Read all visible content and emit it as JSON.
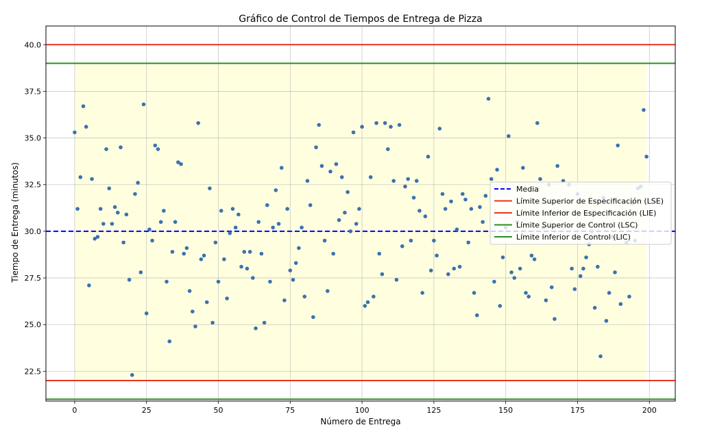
{
  "chart_data": {
    "type": "scatter",
    "title": "Gráfico de Control de Tiempos de Entrega de Pizza",
    "xlabel": "Número de Entrega",
    "ylabel": "Tiempo de Entrega (minutos)",
    "xlim": [
      -10,
      209
    ],
    "ylim": [
      20.9,
      41.0
    ],
    "xticks": [
      0,
      25,
      50,
      75,
      100,
      125,
      150,
      175,
      200
    ],
    "xtick_labels": [
      "0",
      "25",
      "50",
      "75",
      "100",
      "125",
      "150",
      "175",
      "200"
    ],
    "yticks": [
      22.5,
      25.0,
      27.5,
      30.0,
      32.5,
      35.0,
      37.5,
      40.0
    ],
    "ytick_labels": [
      "22.5",
      "25.0",
      "27.5",
      "30.0",
      "32.5",
      "35.0",
      "37.5",
      "40.0"
    ],
    "grid": true,
    "legend_position": "right",
    "shaded_region": {
      "x": [
        0,
        199
      ],
      "y": [
        22.0,
        39.0
      ],
      "color": "#ffffe0"
    },
    "lines": [
      {
        "name": "Media",
        "y": 30.0,
        "color": "#0000ff",
        "style": "dashed"
      },
      {
        "name": "Límite Superior de Especificación (LSE)",
        "y": 40.0,
        "color": "#e8331e",
        "style": "solid"
      },
      {
        "name": "Límite Inferior de Especificación (LIE)",
        "y": 22.0,
        "color": "#e8331e",
        "style": "solid"
      },
      {
        "name": "Límite Superior de Control (LSC)",
        "y": 39.0,
        "color": "#2e8b22",
        "style": "solid"
      },
      {
        "name": "Límite Inferior de Control (LIC)",
        "y": 21.0,
        "color": "#2e8b22",
        "style": "solid"
      }
    ],
    "series": [
      {
        "color": "#3a72b0",
        "x": [
          0,
          1,
          2,
          3,
          4,
          5,
          6,
          7,
          8,
          9,
          10,
          11,
          12,
          13,
          14,
          15,
          16,
          17,
          18,
          19,
          20,
          21,
          22,
          23,
          24,
          25,
          26,
          27,
          28,
          29,
          30,
          31,
          32,
          33,
          34,
          35,
          36,
          37,
          38,
          39,
          40,
          41,
          42,
          43,
          44,
          45,
          46,
          47,
          48,
          49,
          50,
          51,
          52,
          53,
          54,
          55,
          56,
          57,
          58,
          59,
          60,
          61,
          62,
          63,
          64,
          65,
          66,
          67,
          68,
          69,
          70,
          71,
          72,
          73,
          74,
          75,
          76,
          77,
          78,
          79,
          80,
          81,
          82,
          83,
          84,
          85,
          86,
          87,
          88,
          89,
          90,
          91,
          92,
          93,
          94,
          95,
          96,
          97,
          98,
          99,
          100,
          101,
          102,
          103,
          104,
          105,
          106,
          107,
          108,
          109,
          110,
          111,
          112,
          113,
          114,
          115,
          116,
          117,
          118,
          119,
          120,
          121,
          122,
          123,
          124,
          125,
          126,
          127,
          128,
          129,
          130,
          131,
          132,
          133,
          134,
          135,
          136,
          137,
          138,
          139,
          140,
          141,
          142,
          143,
          144,
          145,
          146,
          147,
          148,
          149,
          150,
          151,
          152,
          153,
          154,
          155,
          156,
          157,
          158,
          159,
          160,
          161,
          162,
          163,
          164,
          165,
          166,
          167,
          168,
          169,
          170,
          171,
          172,
          173,
          174,
          175,
          176,
          177,
          178,
          179,
          180,
          181,
          182,
          183,
          184,
          185,
          186,
          187,
          188,
          189,
          190,
          191,
          192,
          193,
          194,
          195,
          196,
          197,
          198,
          199
        ],
        "y": [
          35.3,
          31.2,
          32.9,
          36.7,
          35.6,
          27.1,
          32.8,
          29.6,
          29.7,
          31.2,
          30.4,
          34.4,
          32.3,
          30.4,
          31.3,
          31.0,
          34.5,
          29.4,
          30.9,
          27.4,
          22.3,
          32.0,
          32.6,
          27.8,
          36.8,
          25.6,
          30.1,
          29.5,
          34.6,
          34.4,
          30.5,
          31.1,
          27.3,
          24.1,
          28.9,
          30.5,
          33.7,
          33.6,
          28.8,
          29.1,
          26.8,
          25.7,
          24.9,
          35.8,
          28.5,
          28.7,
          26.2,
          32.3,
          25.1,
          29.4,
          27.3,
          31.1,
          28.5,
          26.4,
          29.9,
          31.2,
          30.2,
          30.9,
          28.1,
          28.9,
          28.0,
          28.9,
          27.5,
          24.8,
          30.5,
          28.8,
          25.1,
          31.4,
          27.3,
          30.2,
          32.2,
          30.4,
          33.4,
          26.3,
          31.2,
          27.9,
          27.4,
          28.3,
          29.1,
          30.2,
          26.5,
          32.7,
          31.4,
          25.4,
          34.5,
          35.7,
          33.5,
          29.5,
          26.8,
          33.2,
          28.8,
          33.6,
          30.6,
          32.9,
          31.0,
          32.1,
          30.0,
          35.3,
          30.4,
          31.2,
          35.6,
          26.0,
          26.2,
          32.9,
          26.5,
          35.8,
          28.8,
          27.7,
          35.8,
          34.4,
          35.6,
          32.7,
          27.4,
          35.7,
          29.2,
          32.4,
          32.8,
          29.5,
          31.8,
          32.7,
          31.1,
          26.7,
          30.8,
          34.0,
          27.9,
          29.5,
          28.7,
          35.5,
          32.0,
          31.2,
          27.7,
          31.6,
          28.0,
          30.1,
          28.1,
          32.0,
          31.7,
          29.4,
          31.2,
          26.7,
          25.5,
          31.3,
          30.5,
          31.9,
          37.1,
          32.8,
          27.3,
          33.3,
          26.0,
          28.6,
          30.2,
          35.1,
          27.8,
          27.5,
          30.5,
          28.0,
          33.4,
          26.7,
          26.5,
          28.7,
          28.5,
          35.8,
          32.8,
          30.2,
          26.3,
          32.5,
          27.0,
          25.3,
          33.5,
          31.0,
          32.7,
          31.0,
          32.5,
          28.0,
          26.9,
          32.0,
          27.6,
          28.0,
          28.6,
          29.3,
          30.0,
          25.9,
          28.1,
          23.3,
          31.8,
          25.2,
          26.7,
          29.7,
          27.8,
          34.6,
          26.1,
          30.9,
          29.4,
          26.5,
          31.5,
          29.5,
          32.3,
          32.4,
          36.5,
          34.0
        ]
      }
    ]
  }
}
